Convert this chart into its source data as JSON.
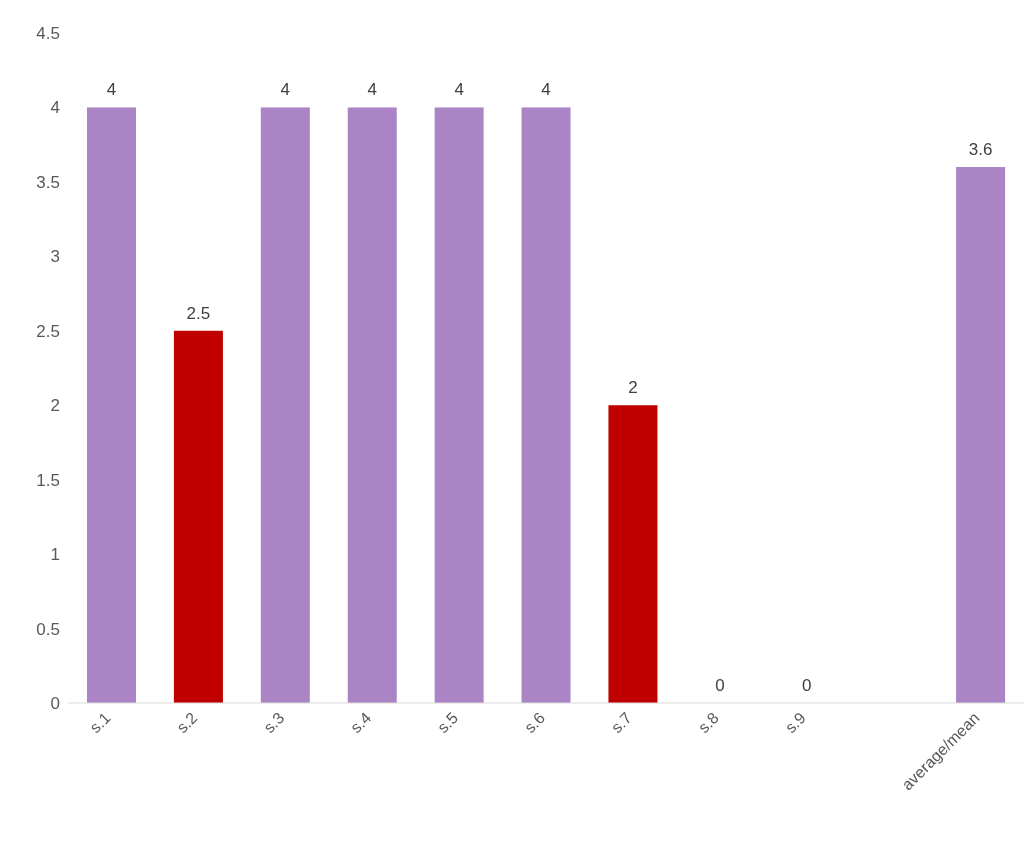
{
  "chart_data": {
    "type": "bar",
    "categories": [
      "s.1",
      "s.2",
      "s.3",
      "s.4",
      "s.5",
      "s.6",
      "s.7",
      "s.8",
      "s.9",
      null,
      "average/mean"
    ],
    "values": [
      4,
      2.5,
      4,
      4,
      4,
      4,
      2,
      0,
      0,
      null,
      3.6
    ],
    "colors": [
      "#ab84c6",
      "#c00000",
      "#ab84c6",
      "#ab84c6",
      "#ab84c6",
      "#ab84c6",
      "#c00000",
      "#ab84c6",
      "#ab84c6",
      "#ab84c6",
      "#ab84c6"
    ],
    "ylim": [
      0,
      4.5
    ],
    "yticks": [
      0,
      0.5,
      1,
      1.5,
      2,
      2.5,
      3,
      3.5,
      4,
      4.5
    ],
    "data_labels": true,
    "grid": false,
    "legend": false
  }
}
